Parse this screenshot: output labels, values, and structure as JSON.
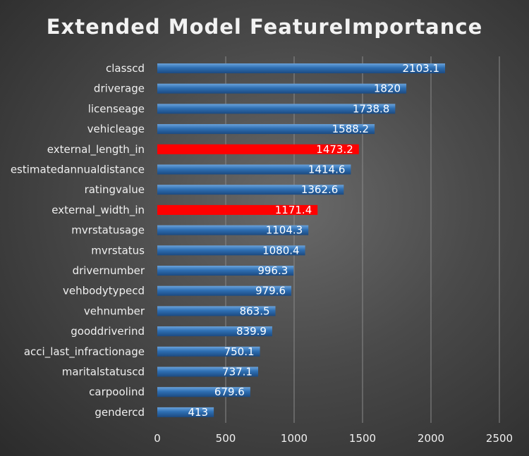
{
  "chart_data": {
    "type": "bar",
    "orientation": "horizontal",
    "title": "Extended Model FeatureImportance",
    "xlabel": "",
    "ylabel": "",
    "xlim": [
      0,
      2500
    ],
    "x_ticks": [
      "0",
      "500",
      "1000",
      "1500",
      "2000",
      "2500"
    ],
    "grid": true,
    "legend": "none",
    "categories": [
      "classcd",
      "driverage",
      "licenseage",
      "vehicleage",
      "external_length_in",
      "estimatedannualdistance",
      "ratingvalue",
      "external_width_in",
      "mvrstatusage",
      "mvrstatus",
      "drivernumber",
      "vehbodytypecd",
      "vehnumber",
      "gooddriverind",
      "acci_last_infractionage",
      "maritalstatuscd",
      "carpoolind",
      "gendercd"
    ],
    "values": [
      2103.1,
      1820,
      1738.8,
      1588.2,
      1473.2,
      1414.6,
      1362.6,
      1171.4,
      1104.3,
      1080.4,
      996.3,
      979.6,
      863.5,
      839.9,
      750.1,
      737.1,
      679.6,
      413
    ],
    "data_labels": [
      "2103.1",
      "1820",
      "1738.8",
      "1588.2",
      "1473.2",
      "1414.6",
      "1362.6",
      "1171.4",
      "1104.3",
      "1080.4",
      "996.3",
      "979.6",
      "863.5",
      "839.9",
      "750.1",
      "737.1",
      "679.6",
      "413"
    ],
    "highlighted": [
      "external_length_in",
      "external_width_in"
    ],
    "colors": {
      "bar": "#2e6fb3",
      "bar_light": "#5b95d0",
      "bar_dark": "#1f4f85",
      "highlight": "#ff0000",
      "text": "#f0f0f0",
      "grid": "#8a8a8a"
    }
  }
}
